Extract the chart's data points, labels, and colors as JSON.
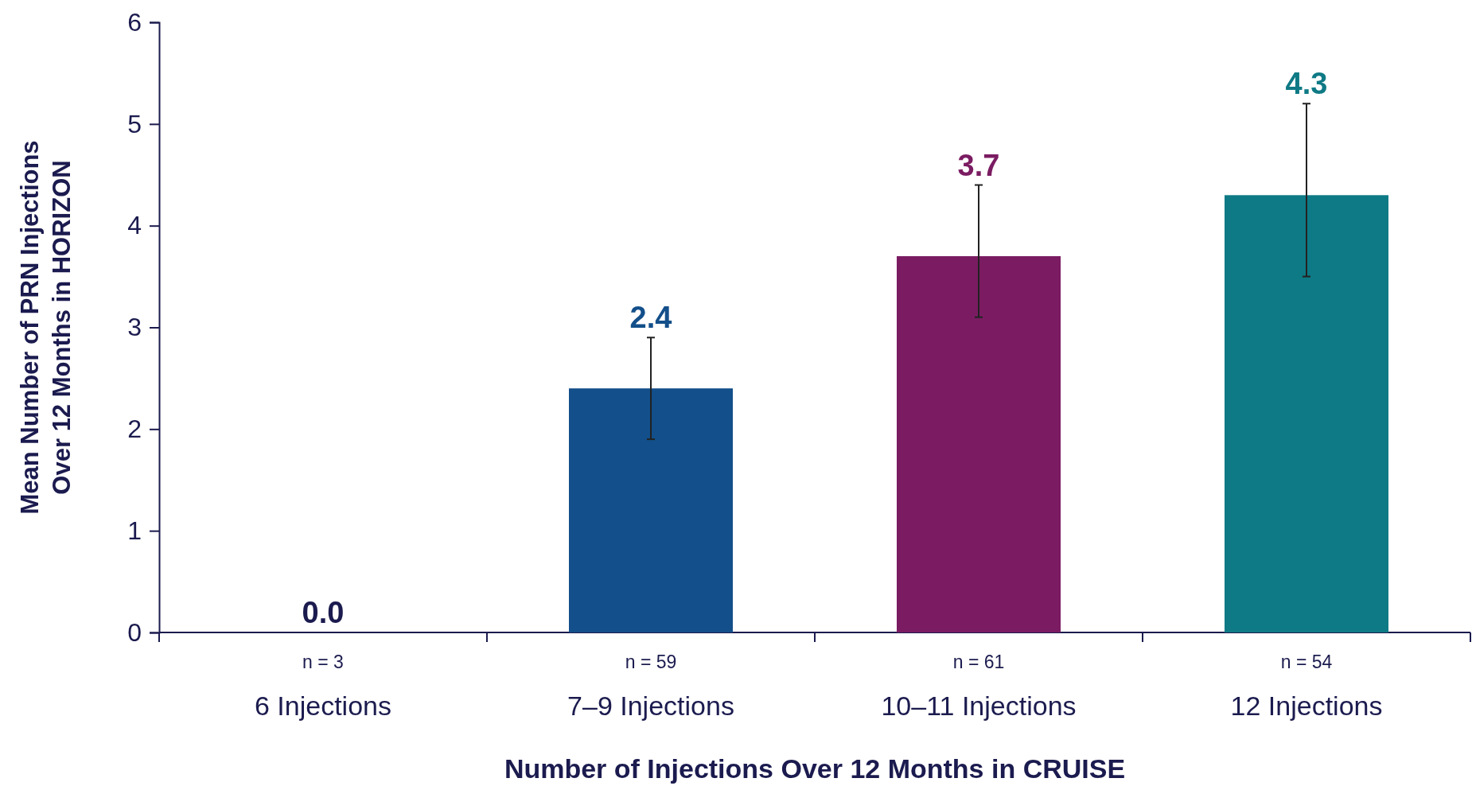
{
  "chart_data": {
    "type": "bar",
    "xlabel": "Number of Injections Over 12 Months in CRUISE",
    "ylabel": "Mean Number of PRN Injections Over 12 Months in HORIZON",
    "categories": [
      "6 Injections",
      "7–9 Injections",
      "10–11 Injections",
      "12 Injections"
    ],
    "values": [
      0.0,
      2.4,
      3.7,
      4.3
    ],
    "colors": [
      "#1b1b4f",
      "#134f8a",
      "#7b1c62",
      "#0e7a85"
    ],
    "errors": [
      null,
      [
        1.9,
        2.9
      ],
      [
        3.1,
        4.4
      ],
      [
        3.5,
        5.2
      ]
    ],
    "value_labels": [
      "0.0",
      "2.4",
      "3.7",
      "4.3"
    ],
    "ylim": [
      0,
      6
    ],
    "yticks": [
      0,
      1,
      2,
      3,
      4,
      5,
      6
    ],
    "annotations": [
      "n = 3",
      "n = 59",
      "n = 61",
      "n = 54"
    ]
  }
}
